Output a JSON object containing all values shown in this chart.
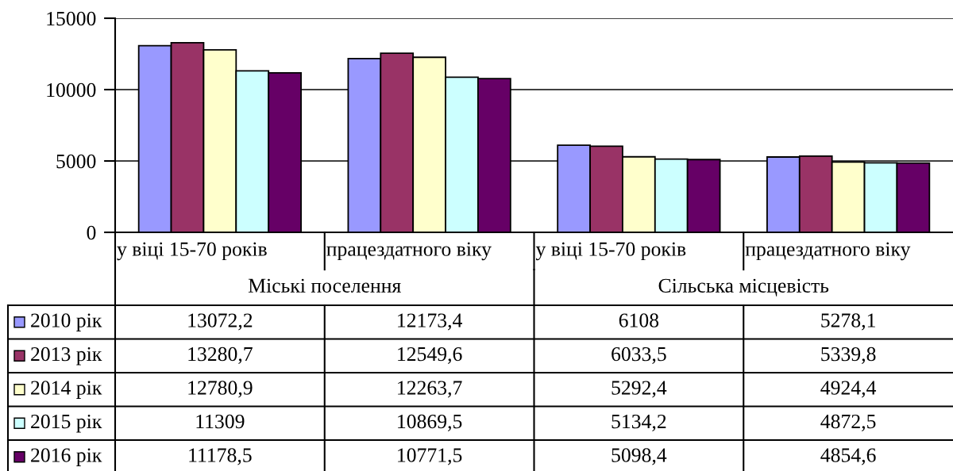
{
  "chart_data": {
    "type": "bar",
    "categories": [
      "у віці 15-70 років",
      "працездатного віку",
      "у віці 15-70 років",
      "працездатного віку"
    ],
    "annotations": [
      "Міські поселення",
      "Сільська місцевість"
    ],
    "series": [
      {
        "name": "2010 рік",
        "color": "#9999ff",
        "values": [
          13072.2,
          12173.4,
          6108,
          5278.1
        ],
        "value_labels": [
          "13072,2",
          "12173,4",
          "6108",
          "5278,1"
        ]
      },
      {
        "name": "2013 рік",
        "color": "#993366",
        "values": [
          13280.7,
          12549.6,
          6033.5,
          5339.8
        ],
        "value_labels": [
          "13280,7",
          "12549,6",
          "6033,5",
          "5339,8"
        ]
      },
      {
        "name": "2014 рік",
        "color": "#ffffcc",
        "values": [
          12780.9,
          12263.7,
          5292.4,
          4924.4
        ],
        "value_labels": [
          "12780,9",
          "12263,7",
          "5292,4",
          "4924,4"
        ]
      },
      {
        "name": "2015 рік",
        "color": "#ccffff",
        "values": [
          11309,
          10869.5,
          5134.2,
          4872.5
        ],
        "value_labels": [
          "11309",
          "10869,5",
          "5134,2",
          "4872,5"
        ]
      },
      {
        "name": "2016 рік",
        "color": "#660066",
        "values": [
          11178.5,
          10771.5,
          5098.4,
          4854.6
        ],
        "value_labels": [
          "11178,5",
          "10771,5",
          "5098,4",
          "4854,6"
        ]
      }
    ],
    "ylim": [
      0,
      15000
    ],
    "yticks": [
      0,
      5000,
      10000,
      15000
    ],
    "grid": "y",
    "legend": "bottom left"
  }
}
